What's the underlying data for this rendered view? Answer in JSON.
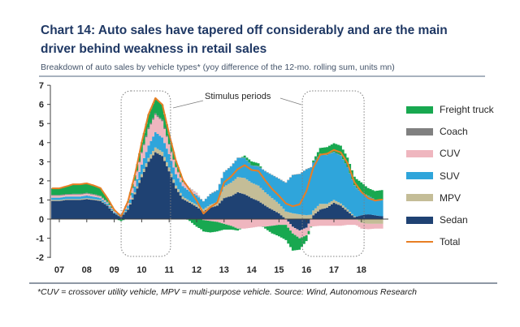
{
  "header": {
    "title_lines": [
      "Chart 14:  Auto sales have tapered off considerably and are the main",
      "driver behind weakness in retail sales"
    ],
    "subtitle": "Breakdown of auto sales by vehicle types* (yoy difference of the 12-mo. rolling sum, units mn)"
  },
  "footnote": {
    "text": "*CUV = crossover utility vehicle, MPV = multi-purpose vehicle. Source: Wind, Autonomous Research"
  },
  "colors": {
    "title": "#1F3864",
    "subtitle": "#44546A",
    "rule": "#A8B2BE",
    "rule-dark": "#8E98A4",
    "axis-text": "#262626",
    "axis-line": "#404040",
    "box-stroke": "#7F7F7F"
  },
  "chart_data": {
    "type": "area",
    "stacked": true,
    "subtitle_units": "units mn",
    "x_start": 2006.75,
    "x_step": 0.25,
    "x_axis_labels": [
      "07",
      "08",
      "09",
      "10",
      "11",
      "12",
      "13",
      "14",
      "15",
      "16",
      "17",
      "18"
    ],
    "y_ticks": [
      7,
      6,
      5,
      4,
      3,
      2,
      1,
      0,
      -1,
      -2
    ],
    "ylim": [
      -2,
      7
    ],
    "grid": false,
    "legend_position": "right",
    "series": [
      {
        "name": "Sedan",
        "color": "#1F4273",
        "values": [
          0.95,
          0.95,
          1.0,
          1.0,
          1.0,
          1.05,
          1.0,
          0.95,
          0.7,
          0.3,
          0.1,
          0.5,
          1.3,
          2.2,
          3.0,
          3.5,
          3.3,
          2.5,
          1.6,
          1.05,
          0.85,
          0.65,
          0.4,
          0.6,
          0.7,
          1.1,
          1.2,
          1.4,
          1.3,
          1.1,
          0.95,
          0.7,
          0.5,
          0.3,
          0.0,
          -0.4,
          -0.6,
          -0.45,
          0.2,
          0.5,
          0.6,
          0.85,
          0.7,
          0.4,
          0.1,
          0.2,
          0.25,
          0.2,
          0.15
        ]
      },
      {
        "name": "MPV",
        "color": "#C4BD97",
        "values": [
          0.05,
          0.05,
          0.05,
          0.05,
          0.05,
          0.05,
          0.05,
          0.05,
          0.03,
          0.02,
          0.02,
          0.05,
          0.1,
          0.15,
          0.2,
          0.25,
          0.22,
          0.2,
          0.15,
          0.12,
          0.1,
          0.1,
          0.12,
          0.15,
          0.2,
          0.6,
          0.7,
          0.8,
          0.85,
          0.8,
          0.8,
          0.7,
          0.6,
          0.5,
          0.4,
          0.3,
          0.25,
          0.2,
          0.25,
          0.3,
          0.2,
          0.15,
          0.12,
          0.1,
          0.05,
          -0.2,
          -0.25,
          -0.25,
          -0.25
        ]
      },
      {
        "name": "SUV",
        "color": "#2FA5DB",
        "values": [
          0.12,
          0.12,
          0.12,
          0.13,
          0.13,
          0.13,
          0.12,
          0.1,
          0.08,
          0.05,
          0.05,
          0.15,
          0.3,
          0.5,
          0.65,
          0.8,
          0.75,
          0.7,
          0.6,
          0.55,
          0.5,
          0.5,
          0.4,
          0.55,
          0.6,
          0.75,
          0.85,
          1.0,
          1.05,
          0.9,
          1.0,
          1.1,
          1.2,
          1.3,
          1.5,
          2.0,
          2.1,
          2.4,
          2.5,
          2.6,
          2.55,
          2.5,
          2.5,
          2.2,
          1.6,
          1.2,
          0.95,
          0.8,
          0.85
        ]
      },
      {
        "name": "CUV",
        "color": "#EFB6BF",
        "values": [
          0.1,
          0.1,
          0.1,
          0.1,
          0.1,
          0.1,
          0.1,
          0.08,
          0.06,
          0.05,
          0.05,
          0.15,
          0.3,
          0.6,
          0.85,
          0.9,
          0.85,
          0.5,
          0.35,
          0.2,
          0.15,
          0.1,
          -0.05,
          -0.1,
          -0.15,
          -0.25,
          -0.35,
          -0.5,
          -0.5,
          -0.45,
          -0.4,
          -0.4,
          -0.35,
          -0.3,
          -0.3,
          -0.35,
          -0.4,
          -0.4,
          -0.38,
          -0.35,
          -0.35,
          -0.35,
          -0.35,
          -0.3,
          -0.3,
          -0.3,
          -0.28,
          -0.25,
          -0.25
        ]
      },
      {
        "name": "Coach",
        "color": "#808080",
        "values": [
          0.04,
          0.04,
          0.04,
          0.04,
          0.04,
          0.04,
          0.04,
          0.04,
          0.03,
          0.02,
          0.02,
          0.03,
          0.05,
          0.06,
          0.08,
          0.08,
          0.07,
          0.05,
          0.04,
          0.03,
          0.03,
          0.02,
          0.02,
          0.02,
          0.02,
          0.02,
          0.02,
          0.02,
          0.02,
          0.02,
          0.02,
          0.02,
          0.02,
          0.02,
          0.02,
          0.02,
          0.02,
          0.02,
          0.02,
          0.02,
          0.02,
          0.02,
          0.02,
          0.02,
          0.02,
          0.02,
          0.02,
          0.02,
          0.02
        ]
      },
      {
        "name": "Freight truck",
        "color": "#18A850",
        "values": [
          0.35,
          0.35,
          0.4,
          0.5,
          0.5,
          0.5,
          0.45,
          0.4,
          0.2,
          0.05,
          -0.1,
          0.05,
          0.25,
          0.5,
          0.7,
          0.8,
          0.8,
          0.5,
          0.3,
          0.1,
          -0.1,
          -0.4,
          -0.6,
          -0.6,
          -0.5,
          -0.3,
          -0.2,
          -0.1,
          0.1,
          0.2,
          0.15,
          -0.1,
          -0.4,
          -0.6,
          -0.8,
          -0.9,
          -0.6,
          -0.3,
          0.1,
          0.3,
          0.4,
          0.45,
          0.5,
          0.5,
          0.45,
          0.5,
          0.4,
          0.45,
          0.5
        ]
      }
    ],
    "total": {
      "name": "Total",
      "color": "#E87E24",
      "is_sum_of_series": true
    },
    "legend": [
      {
        "label": "Freight truck",
        "color": "#18A850",
        "style": "box"
      },
      {
        "label": "Coach",
        "color": "#808080",
        "style": "box"
      },
      {
        "label": "CUV",
        "color": "#EFB6BF",
        "style": "box"
      },
      {
        "label": "SUV",
        "color": "#2FA5DB",
        "style": "box"
      },
      {
        "label": "MPV",
        "color": "#C4BD97",
        "style": "box"
      },
      {
        "label": "Sedan",
        "color": "#1F4273",
        "style": "box"
      },
      {
        "label": "Total",
        "color": "#E87E24",
        "style": "line"
      }
    ],
    "annotation": {
      "label": "Stimulus periods",
      "boxes": [
        {
          "x_from": 2009.25,
          "x_to": 2011.05
        },
        {
          "x_from": 2015.85,
          "x_to": 2018.1
        }
      ]
    }
  }
}
